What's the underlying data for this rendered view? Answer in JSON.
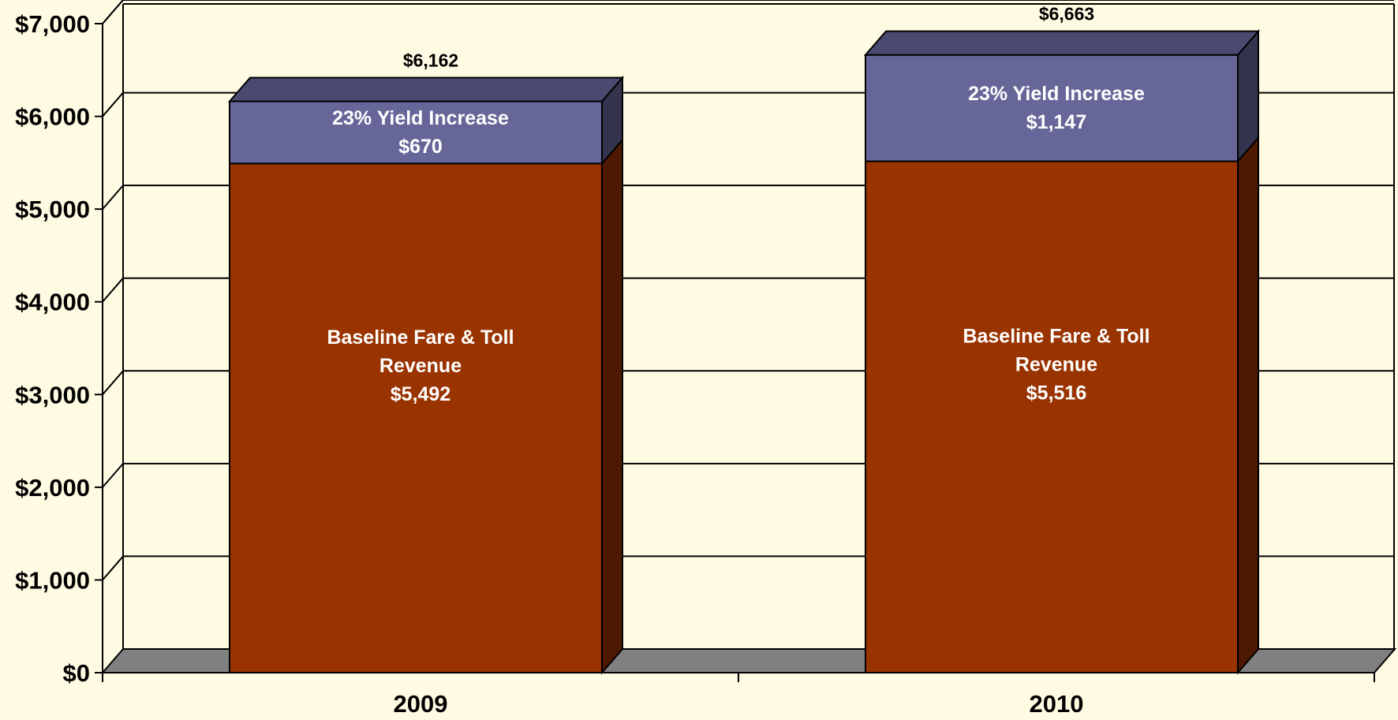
{
  "chart_data": {
    "type": "bar",
    "stacked": true,
    "three_d": true,
    "categories": [
      "2009",
      "2010"
    ],
    "series": [
      {
        "key": "baseline",
        "values": [
          5492,
          5516
        ],
        "labels": [
          [
            "Baseline Fare & Toll",
            "Revenue",
            "$5,492"
          ],
          [
            "Baseline Fare & Toll",
            "Revenue",
            "$5,516"
          ]
        ]
      },
      {
        "key": "yield",
        "values": [
          670,
          1147
        ],
        "labels": [
          [
            "23% Yield Increase",
            "$670"
          ],
          [
            "23% Yield Increase",
            "$1,147"
          ]
        ]
      }
    ],
    "totals": [
      6162,
      6663
    ],
    "total_labels": [
      "$6,162",
      "$6,663"
    ],
    "ylim": [
      0,
      7000
    ],
    "y_ticks": [
      0,
      1000,
      2000,
      3000,
      4000,
      5000,
      6000,
      7000
    ],
    "y_tick_labels": [
      "$0",
      "$1,000",
      "$2,000",
      "$3,000",
      "$4,000",
      "$5,000",
      "$6,000",
      "$7,000"
    ],
    "title": "",
    "xlabel": "",
    "ylabel": "",
    "grid": true,
    "legend": "none",
    "colors": {
      "background": "#fffbe2",
      "baseline_front": "#993300",
      "baseline_side": "#4d1900",
      "yield_front": "#666699",
      "yield_top": "#4a4a70",
      "yield_side": "#33334d",
      "floor": "#808080",
      "grid": "#000000"
    }
  }
}
